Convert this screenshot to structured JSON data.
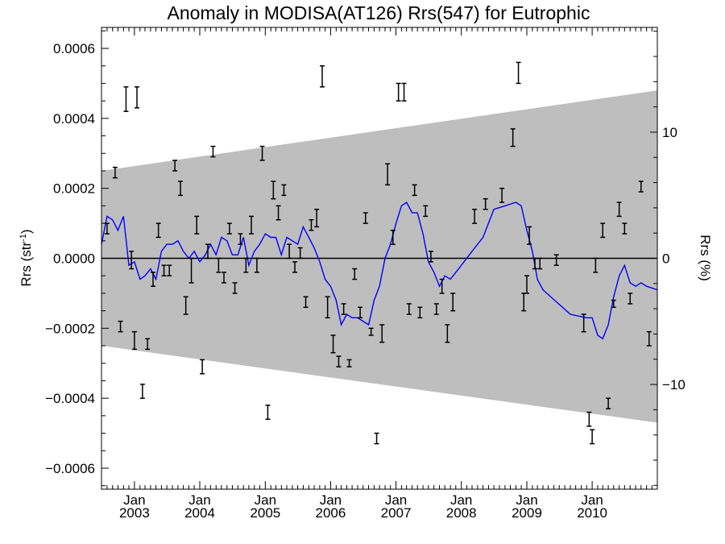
{
  "chart_data": {
    "type": "scatter",
    "title": "Anomaly in MODISA(AT126) Rrs(547) for Eutrophic",
    "ylabel": {
      "main": "Rrs (str",
      "sup": "-1",
      "close": ")"
    },
    "y2label": "Rrs (%)",
    "grid": false,
    "legend": "none",
    "xlim": [
      "2002-07-01",
      "2010-12-31"
    ],
    "ylim": [
      -0.00066,
      0.00066
    ],
    "y2lim": [
      -18.3,
      18.3
    ],
    "x_ticks": [
      {
        "month": "Jan",
        "year": "2003",
        "date": "2003-01-01"
      },
      {
        "month": "Jan",
        "year": "2004",
        "date": "2004-01-01"
      },
      {
        "month": "Jan",
        "year": "2005",
        "date": "2005-01-01"
      },
      {
        "month": "Jan",
        "year": "2006",
        "date": "2006-01-01"
      },
      {
        "month": "Jan",
        "year": "2007",
        "date": "2007-01-01"
      },
      {
        "month": "Jan",
        "year": "2008",
        "date": "2008-01-01"
      },
      {
        "month": "Jan",
        "year": "2009",
        "date": "2009-01-01"
      },
      {
        "month": "Jan",
        "year": "2010",
        "date": "2010-01-01"
      }
    ],
    "y_ticks": [
      {
        "value": 0.0006,
        "label": "0.0006"
      },
      {
        "value": 0.0004,
        "label": "0.0004"
      },
      {
        "value": 0.0002,
        "label": "0.0002"
      },
      {
        "value": 0.0,
        "label": "0.0000"
      },
      {
        "value": -0.0002,
        "label": "−0.0002"
      },
      {
        "value": -0.0004,
        "label": "−0.0004"
      },
      {
        "value": -0.0006,
        "label": "−0.0006"
      }
    ],
    "y2_ticks": [
      {
        "value": 10,
        "label": "10"
      },
      {
        "value": 0,
        "label": "0"
      },
      {
        "value": -10,
        "label": "−10"
      }
    ],
    "colors": {
      "band": "#bebebe",
      "line": "#0000ff",
      "points": "#000000",
      "zero_line": "#000000"
    },
    "band": [
      {
        "date": "2002-07-01",
        "lower": -0.00025,
        "upper": 0.00025
      },
      {
        "date": "2010-12-31",
        "lower": -0.00047,
        "upper": 0.00048
      }
    ],
    "zero_line": 0,
    "smoothed_series": [
      {
        "date": "2002-07-01",
        "y": 4e-05
      },
      {
        "date": "2002-08-01",
        "y": 0.00012
      },
      {
        "date": "2002-09-01",
        "y": 0.00011
      },
      {
        "date": "2002-10-01",
        "y": 8e-05
      },
      {
        "date": "2002-11-01",
        "y": 0.00012
      },
      {
        "date": "2002-12-01",
        "y": -2e-05
      },
      {
        "date": "2003-01-01",
        "y": -1e-05
      },
      {
        "date": "2003-02-01",
        "y": -6e-05
      },
      {
        "date": "2003-03-01",
        "y": -5e-05
      },
      {
        "date": "2003-04-01",
        "y": -3e-05
      },
      {
        "date": "2003-05-01",
        "y": -6e-05
      },
      {
        "date": "2003-06-01",
        "y": 2e-05
      },
      {
        "date": "2003-07-01",
        "y": 4e-05
      },
      {
        "date": "2003-08-01",
        "y": 4e-05
      },
      {
        "date": "2003-09-01",
        "y": 5e-05
      },
      {
        "date": "2003-10-01",
        "y": 2e-05
      },
      {
        "date": "2003-11-01",
        "y": 0.0
      },
      {
        "date": "2003-12-01",
        "y": 2e-05
      },
      {
        "date": "2004-01-01",
        "y": -1e-05
      },
      {
        "date": "2004-02-01",
        "y": 1e-05
      },
      {
        "date": "2004-03-01",
        "y": 4e-05
      },
      {
        "date": "2004-04-01",
        "y": 1e-05
      },
      {
        "date": "2004-05-01",
        "y": 6e-05
      },
      {
        "date": "2004-06-01",
        "y": 5e-05
      },
      {
        "date": "2004-07-01",
        "y": 1e-05
      },
      {
        "date": "2004-08-01",
        "y": 1e-05
      },
      {
        "date": "2004-09-01",
        "y": 6e-05
      },
      {
        "date": "2004-10-01",
        "y": -2e-05
      },
      {
        "date": "2004-11-01",
        "y": 2e-05
      },
      {
        "date": "2004-12-01",
        "y": 4e-05
      },
      {
        "date": "2005-01-01",
        "y": 7e-05
      },
      {
        "date": "2005-02-01",
        "y": 6e-05
      },
      {
        "date": "2005-03-01",
        "y": 6e-05
      },
      {
        "date": "2005-04-01",
        "y": 1e-05
      },
      {
        "date": "2005-05-01",
        "y": 6e-05
      },
      {
        "date": "2005-06-01",
        "y": 5e-05
      },
      {
        "date": "2005-07-01",
        "y": 4e-05
      },
      {
        "date": "2005-08-01",
        "y": 9e-05
      },
      {
        "date": "2005-09-01",
        "y": 6e-05
      },
      {
        "date": "2005-10-01",
        "y": 3e-05
      },
      {
        "date": "2005-11-01",
        "y": -1e-05
      },
      {
        "date": "2005-12-01",
        "y": -6e-05
      },
      {
        "date": "2006-01-01",
        "y": -8e-05
      },
      {
        "date": "2006-02-01",
        "y": -0.00012
      },
      {
        "date": "2006-03-01",
        "y": -0.00019
      },
      {
        "date": "2006-04-01",
        "y": -0.00016
      },
      {
        "date": "2006-05-01",
        "y": -0.00017
      },
      {
        "date": "2006-06-01",
        "y": -0.00017
      },
      {
        "date": "2006-07-01",
        "y": -0.00018
      },
      {
        "date": "2006-08-01",
        "y": -0.00019
      },
      {
        "date": "2006-09-01",
        "y": -0.00012
      },
      {
        "date": "2006-10-01",
        "y": -8e-05
      },
      {
        "date": "2006-11-01",
        "y": 0.0
      },
      {
        "date": "2006-12-01",
        "y": 4e-05
      },
      {
        "date": "2007-01-01",
        "y": 0.0001
      },
      {
        "date": "2007-02-01",
        "y": 0.00015
      },
      {
        "date": "2007-03-01",
        "y": 0.00016
      },
      {
        "date": "2007-04-01",
        "y": 0.00013
      },
      {
        "date": "2007-05-01",
        "y": 0.00013
      },
      {
        "date": "2007-06-01",
        "y": 7e-05
      },
      {
        "date": "2007-07-01",
        "y": -1e-05
      },
      {
        "date": "2007-08-01",
        "y": -4e-05
      },
      {
        "date": "2007-09-01",
        "y": -8e-05
      },
      {
        "date": "2007-10-01",
        "y": -5e-05
      },
      {
        "date": "2007-11-01",
        "y": -6e-05
      },
      {
        "date": "2007-12-01",
        "y": -4e-05
      },
      {
        "date": "2008-01-01",
        "y": -2e-05
      },
      {
        "date": "2008-03-01",
        "y": 2e-05
      },
      {
        "date": "2008-05-01",
        "y": 6e-05
      },
      {
        "date": "2008-07-01",
        "y": 0.00014
      },
      {
        "date": "2008-09-01",
        "y": 0.00015
      },
      {
        "date": "2008-11-01",
        "y": 0.00016
      },
      {
        "date": "2008-12-01",
        "y": 0.00015
      },
      {
        "date": "2009-01-01",
        "y": 8e-05
      },
      {
        "date": "2009-02-01",
        "y": 2e-05
      },
      {
        "date": "2009-03-01",
        "y": -6e-05
      },
      {
        "date": "2009-04-01",
        "y": -9e-05
      },
      {
        "date": "2009-09-01",
        "y": -0.00016
      },
      {
        "date": "2009-12-01",
        "y": -0.00017
      },
      {
        "date": "2010-01-01",
        "y": -0.00017
      },
      {
        "date": "2010-02-01",
        "y": -0.00022
      },
      {
        "date": "2010-03-01",
        "y": -0.00023
      },
      {
        "date": "2010-04-01",
        "y": -0.00019
      },
      {
        "date": "2010-05-01",
        "y": -0.00011
      },
      {
        "date": "2010-06-01",
        "y": -5e-05
      },
      {
        "date": "2010-07-01",
        "y": -2e-05
      },
      {
        "date": "2010-08-01",
        "y": -7e-05
      },
      {
        "date": "2010-09-01",
        "y": -8e-05
      },
      {
        "date": "2010-10-01",
        "y": -7e-05
      },
      {
        "date": "2010-11-01",
        "y": -8e-05
      },
      {
        "date": "2010-12-31",
        "y": -9e-05
      }
    ],
    "observations": [
      {
        "date": "2002-08-01",
        "low": 7e-05,
        "high": 0.0001
      },
      {
        "date": "2002-09-15",
        "low": 0.00023,
        "high": 0.00026
      },
      {
        "date": "2002-10-15",
        "low": -0.00021,
        "high": -0.00018
      },
      {
        "date": "2002-11-15",
        "low": 0.00042,
        "high": 0.00049
      },
      {
        "date": "2002-12-15",
        "low": -3e-05,
        "high": 2e-05
      },
      {
        "date": "2003-01-01",
        "low": -0.00026,
        "high": -0.00021
      },
      {
        "date": "2003-01-15",
        "low": 0.00043,
        "high": 0.00049
      },
      {
        "date": "2003-02-15",
        "low": -0.0004,
        "high": -0.00036
      },
      {
        "date": "2003-03-15",
        "low": -0.00026,
        "high": -0.00023
      },
      {
        "date": "2003-04-15",
        "low": -8e-05,
        "high": -4e-05
      },
      {
        "date": "2003-05-15",
        "low": 6e-05,
        "high": 0.0001
      },
      {
        "date": "2003-06-15",
        "low": -5e-05,
        "high": -2e-05
      },
      {
        "date": "2003-07-15",
        "low": -5e-05,
        "high": -2e-05
      },
      {
        "date": "2003-08-15",
        "low": 0.00025,
        "high": 0.00028
      },
      {
        "date": "2003-09-15",
        "low": 0.00018,
        "high": 0.00022
      },
      {
        "date": "2003-10-15",
        "low": -0.00016,
        "high": -0.00011
      },
      {
        "date": "2003-11-15",
        "low": -7e-05,
        "high": 0.0
      },
      {
        "date": "2003-12-15",
        "low": 7e-05,
        "high": 0.00012
      },
      {
        "date": "2004-01-15",
        "low": -0.00033,
        "high": -0.00029
      },
      {
        "date": "2004-02-15",
        "low": 0.0,
        "high": 4e-05
      },
      {
        "date": "2004-03-15",
        "low": 0.00029,
        "high": 0.00032
      },
      {
        "date": "2004-04-15",
        "low": -4e-05,
        "high": 0.0
      },
      {
        "date": "2004-05-15",
        "low": -7e-05,
        "high": -4e-05
      },
      {
        "date": "2004-06-15",
        "low": 7e-05,
        "high": 0.0001
      },
      {
        "date": "2004-07-15",
        "low": -0.0001,
        "high": -7e-05
      },
      {
        "date": "2004-08-15",
        "low": 4e-05,
        "high": 7e-05
      },
      {
        "date": "2004-09-15",
        "low": -4e-05,
        "high": 0.0
      },
      {
        "date": "2004-10-15",
        "low": 7e-05,
        "high": 0.00012
      },
      {
        "date": "2004-11-15",
        "low": -4e-05,
        "high": 0.0
      },
      {
        "date": "2004-12-15",
        "low": 0.00028,
        "high": 0.00032
      },
      {
        "date": "2005-01-15",
        "low": -0.00046,
        "high": -0.00042
      },
      {
        "date": "2005-02-15",
        "low": 0.00017,
        "high": 0.00022
      },
      {
        "date": "2005-03-15",
        "low": 0.00011,
        "high": 0.00015
      },
      {
        "date": "2005-04-15",
        "low": 0.00018,
        "high": 0.00021
      },
      {
        "date": "2005-05-15",
        "low": 0.0,
        "high": 4e-05
      },
      {
        "date": "2005-06-15",
        "low": -4e-05,
        "high": -1e-05
      },
      {
        "date": "2005-07-15",
        "low": 0.0,
        "high": 3e-05
      },
      {
        "date": "2005-08-15",
        "low": -0.00014,
        "high": -0.00011
      },
      {
        "date": "2005-09-15",
        "low": 8e-05,
        "high": 0.00011
      },
      {
        "date": "2005-10-15",
        "low": 9e-05,
        "high": 0.00014
      },
      {
        "date": "2005-11-15",
        "low": 0.00049,
        "high": 0.00055
      },
      {
        "date": "2005-12-15",
        "low": -0.00017,
        "high": -0.00011
      },
      {
        "date": "2006-01-15",
        "low": -0.00027,
        "high": -0.00022
      },
      {
        "date": "2006-02-15",
        "low": -0.00031,
        "high": -0.00028
      },
      {
        "date": "2006-03-15",
        "low": -0.00016,
        "high": -0.00013
      },
      {
        "date": "2006-04-15",
        "low": -0.00031,
        "high": -0.00029
      },
      {
        "date": "2006-05-15",
        "low": -6e-05,
        "high": -3e-05
      },
      {
        "date": "2006-06-15",
        "low": -0.00017,
        "high": -0.00014
      },
      {
        "date": "2006-07-15",
        "low": 0.0001,
        "high": 0.00013
      },
      {
        "date": "2006-08-15",
        "low": -0.00022,
        "high": -0.0002
      },
      {
        "date": "2006-09-15",
        "low": -0.00053,
        "high": -0.0005
      },
      {
        "date": "2006-10-15",
        "low": -0.00024,
        "high": -0.00019
      },
      {
        "date": "2006-11-15",
        "low": 0.00021,
        "high": 0.00027
      },
      {
        "date": "2006-12-15",
        "low": 4e-05,
        "high": 8e-05
      },
      {
        "date": "2007-01-15",
        "low": 0.00045,
        "high": 0.0005
      },
      {
        "date": "2007-02-15",
        "low": 0.00045,
        "high": 0.0005
      },
      {
        "date": "2007-03-15",
        "low": -0.00016,
        "high": -0.00013
      },
      {
        "date": "2007-04-15",
        "low": 0.00018,
        "high": 0.00021
      },
      {
        "date": "2007-05-15",
        "low": -0.00017,
        "high": -0.00014
      },
      {
        "date": "2007-06-15",
        "low": 0.00012,
        "high": 0.00015
      },
      {
        "date": "2007-07-15",
        "low": -1e-05,
        "high": 2e-05
      },
      {
        "date": "2007-08-15",
        "low": -0.00016,
        "high": -0.00013
      },
      {
        "date": "2007-09-15",
        "low": -0.0001,
        "high": -6e-05
      },
      {
        "date": "2007-10-15",
        "low": -0.00024,
        "high": -0.00019
      },
      {
        "date": "2007-11-15",
        "low": -0.00015,
        "high": -0.0001
      },
      {
        "date": "2008-03-15",
        "low": 0.0001,
        "high": 0.00014
      },
      {
        "date": "2008-05-15",
        "low": 0.00014,
        "high": 0.00017
      },
      {
        "date": "2008-08-15",
        "low": 0.00016,
        "high": 0.0002
      },
      {
        "date": "2008-10-15",
        "low": 0.00032,
        "high": 0.00037
      },
      {
        "date": "2008-11-15",
        "low": 0.0005,
        "high": 0.00056
      },
      {
        "date": "2008-12-15",
        "low": -0.00015,
        "high": -0.0001
      },
      {
        "date": "2009-01-01",
        "low": -0.0001,
        "high": -5e-05
      },
      {
        "date": "2009-01-15",
        "low": 4e-05,
        "high": 9e-05
      },
      {
        "date": "2009-02-15",
        "low": -3e-05,
        "high": 0.0
      },
      {
        "date": "2009-03-15",
        "low": -3e-05,
        "high": 0.0
      },
      {
        "date": "2009-06-15",
        "low": -2e-05,
        "high": 1e-05
      },
      {
        "date": "2009-11-15",
        "low": -0.00021,
        "high": -0.00016
      },
      {
        "date": "2009-12-15",
        "low": -0.00048,
        "high": -0.00044
      },
      {
        "date": "2010-01-01",
        "low": -0.00053,
        "high": -0.00049
      },
      {
        "date": "2010-01-20",
        "low": -4e-05,
        "high": 0.0
      },
      {
        "date": "2010-03-01",
        "low": 6e-05,
        "high": 0.0001
      },
      {
        "date": "2010-04-01",
        "low": -0.00043,
        "high": -0.0004
      },
      {
        "date": "2010-05-01",
        "low": -0.00014,
        "high": -0.00012
      },
      {
        "date": "2010-06-01",
        "low": 0.00012,
        "high": 0.00016
      },
      {
        "date": "2010-07-01",
        "low": 7e-05,
        "high": 0.0001
      },
      {
        "date": "2010-08-01",
        "low": -0.00013,
        "high": -0.0001
      },
      {
        "date": "2010-10-01",
        "low": 0.00019,
        "high": 0.00022
      },
      {
        "date": "2010-11-15",
        "low": -0.00025,
        "high": -0.00021
      }
    ]
  }
}
